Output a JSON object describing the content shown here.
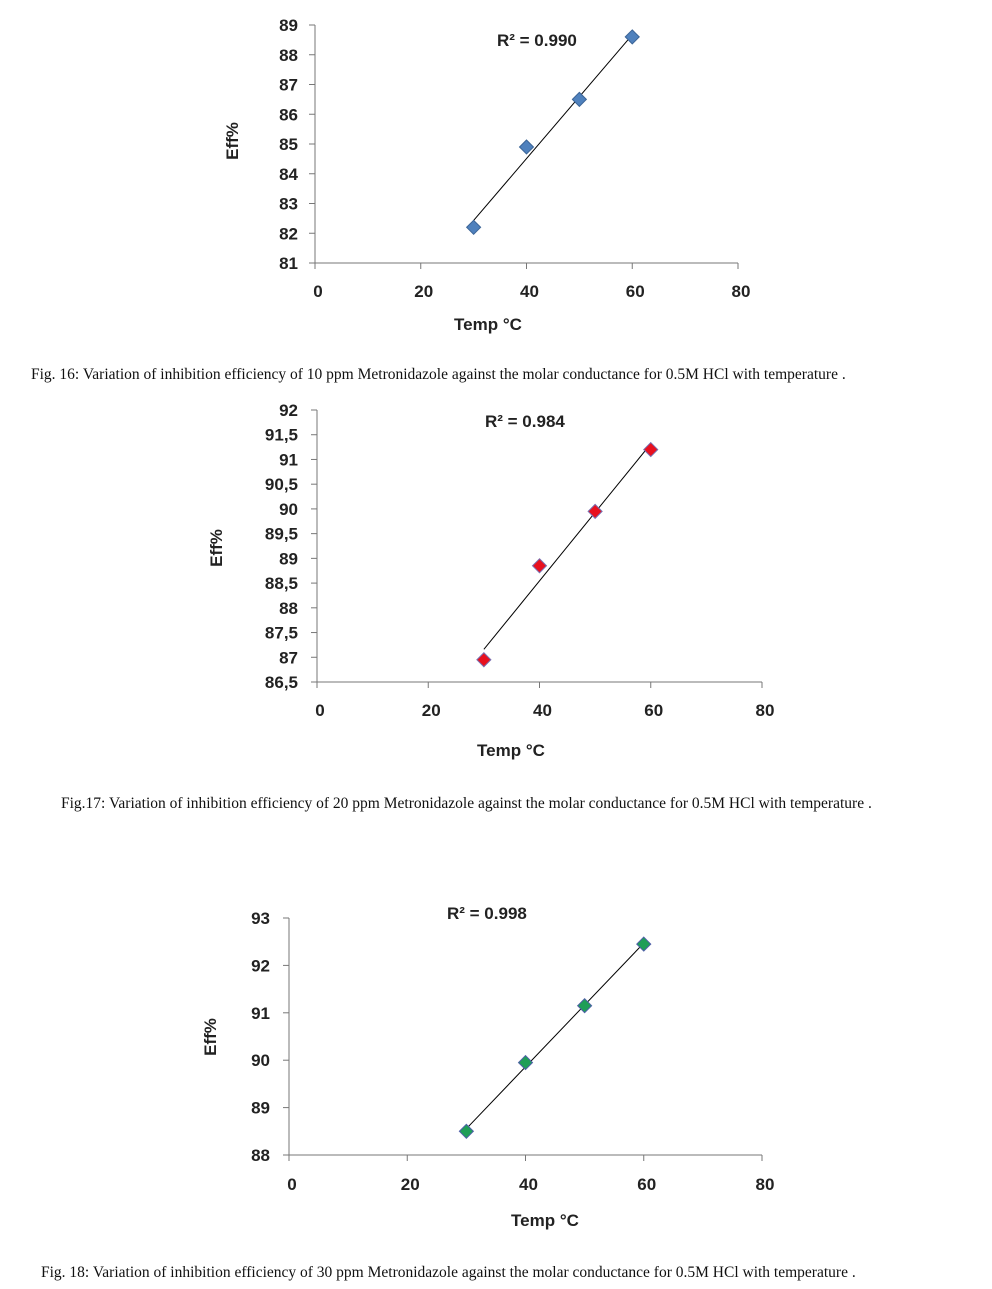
{
  "chart_data": [
    {
      "type": "scatter",
      "title": "",
      "xlabel": "Temp °C",
      "ylabel": "Eff%",
      "xlim": [
        0,
        80
      ],
      "ylim": [
        81,
        89
      ],
      "xticks": [
        0,
        20,
        40,
        60,
        80
      ],
      "xtick_labels": [
        "0",
        "20",
        "40",
        "60",
        "80"
      ],
      "yticks": [
        81,
        82,
        83,
        84,
        85,
        86,
        87,
        88,
        89
      ],
      "ytick_labels": [
        "81",
        "82",
        "83",
        "84",
        "85",
        "86",
        "87",
        "88",
        "89"
      ],
      "x": [
        30,
        40,
        50,
        60
      ],
      "y": [
        82.2,
        84.9,
        86.5,
        88.6
      ],
      "trendline": "linear",
      "r2_label": "R² = 0.990",
      "marker_color": "#4f81bd",
      "marker_stroke": "#3b6496",
      "caption": "Fig. 16: Variation of inhibition efficiency of 10 ppm Metronidazole against the molar conductance for 0.5M HCl  with temperature  ."
    },
    {
      "type": "scatter",
      "title": "",
      "xlabel": "Temp °C",
      "ylabel": "Eff%",
      "xlim": [
        0,
        80
      ],
      "ylim": [
        86.5,
        92
      ],
      "xticks": [
        0,
        20,
        40,
        60,
        80
      ],
      "xtick_labels": [
        "0",
        "20",
        "40",
        "60",
        "80"
      ],
      "yticks": [
        86.5,
        87,
        87.5,
        88,
        88.5,
        89,
        89.5,
        90,
        90.5,
        91,
        91.5,
        92
      ],
      "ytick_labels": [
        "86,5",
        "87",
        "87,5",
        "88",
        "88,5",
        "89",
        "89,5",
        "90",
        "90,5",
        "91",
        "91,5",
        "92"
      ],
      "x": [
        30,
        40,
        50,
        60
      ],
      "y": [
        86.95,
        88.85,
        89.95,
        91.2
      ],
      "trendline": "linear",
      "r2_label": "R² = 0.984",
      "marker_color": "#e8101e",
      "marker_stroke": "#7a6fb0",
      "caption": "Fig.17: Variation of inhibition efficiency of 20 ppm Metronidazole against the molar conductance for 0.5M HCl  with temperature ."
    },
    {
      "type": "scatter",
      "title": "",
      "xlabel": "Temp °C",
      "ylabel": "Eff%",
      "xlim": [
        0,
        80
      ],
      "ylim": [
        88,
        93
      ],
      "xticks": [
        0,
        20,
        40,
        60,
        80
      ],
      "xtick_labels": [
        "0",
        "20",
        "40",
        "60",
        "80"
      ],
      "yticks": [
        88,
        89,
        90,
        91,
        92,
        93
      ],
      "ytick_labels": [
        "88",
        "89",
        "90",
        "91",
        "92",
        "93"
      ],
      "x": [
        30,
        40,
        50,
        60
      ],
      "y": [
        88.5,
        89.95,
        91.15,
        92.45
      ],
      "trendline": "linear",
      "r2_label": "R² = 0.998",
      "marker_color": "#1f9e57",
      "marker_stroke": "#4f5fa8",
      "caption": "Fig. 18: Variation of inhibition efficiency of 30 ppm Metronidazole against the molar conductance for 0.5M HCl  with temperature ."
    }
  ]
}
